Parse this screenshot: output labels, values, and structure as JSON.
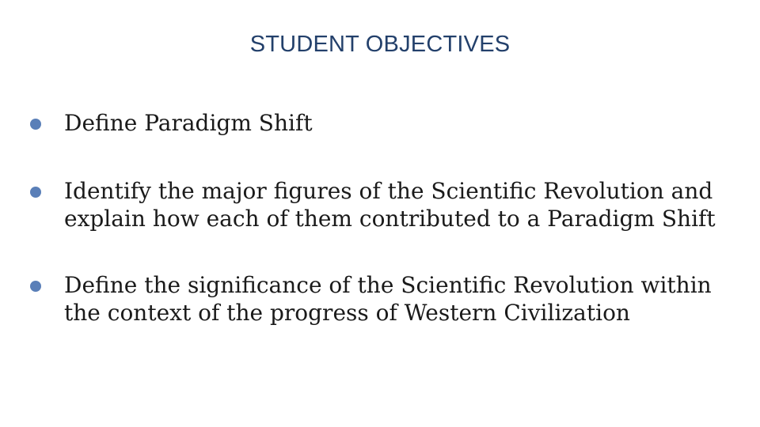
{
  "slide": {
    "title": "STUDENT OBJECTIVES",
    "bullets": [
      {
        "lines": [
          "Define Paradigm Shift"
        ]
      },
      {
        "lines": [
          "Identify the major figures of the Scientific Revolution and",
          "explain how each of them contributed to a Paradigm Shift"
        ]
      },
      {
        "lines": [
          "Define the significance of the Scientific Revolution within",
          "the context of the progress of Western Civilization"
        ]
      }
    ],
    "colors": {
      "title": "#23406b",
      "bullet_dot": "#5a7fb8",
      "body_text": "#1a1a1a",
      "background": "#ffffff"
    }
  }
}
